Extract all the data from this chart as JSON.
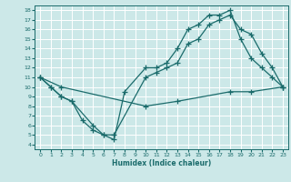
{
  "xlabel": "Humidex (Indice chaleur)",
  "bg_color": "#cce8e8",
  "line_color": "#1a6b6b",
  "grid_color": "#ffffff",
  "xlim": [
    -0.5,
    23.5
  ],
  "ylim": [
    3.5,
    18.5
  ],
  "xticks": [
    0,
    1,
    2,
    3,
    4,
    5,
    6,
    7,
    8,
    9,
    10,
    11,
    12,
    13,
    14,
    15,
    16,
    17,
    18,
    19,
    20,
    21,
    22,
    23
  ],
  "yticks": [
    4,
    5,
    6,
    7,
    8,
    9,
    10,
    11,
    12,
    13,
    14,
    15,
    16,
    17,
    18
  ],
  "line1_x": [
    0,
    1,
    2,
    3,
    5,
    6,
    7,
    8,
    10,
    11,
    12,
    13,
    14,
    15,
    16,
    17,
    18,
    19,
    20,
    21,
    22,
    23
  ],
  "line1_y": [
    11,
    10,
    9,
    8.5,
    6,
    5,
    4.5,
    9.5,
    12,
    12,
    12.5,
    14,
    16,
    16.5,
    17.5,
    17.5,
    18,
    15,
    13,
    12,
    11,
    10
  ],
  "line2_x": [
    0,
    1,
    2,
    3,
    4,
    5,
    6,
    7,
    10,
    11,
    12,
    13,
    14,
    15,
    16,
    17,
    18,
    19,
    20,
    21,
    22,
    23
  ],
  "line2_y": [
    11,
    10,
    9,
    8.5,
    6.5,
    5.5,
    5,
    5,
    11,
    11.5,
    12,
    12.5,
    14.5,
    15,
    16.5,
    17,
    17.5,
    16,
    15.5,
    13.5,
    12,
    10
  ],
  "line3_x": [
    0,
    2,
    10,
    13,
    18,
    20,
    23
  ],
  "line3_y": [
    11,
    10,
    8,
    8.5,
    9.5,
    9.5,
    10
  ]
}
